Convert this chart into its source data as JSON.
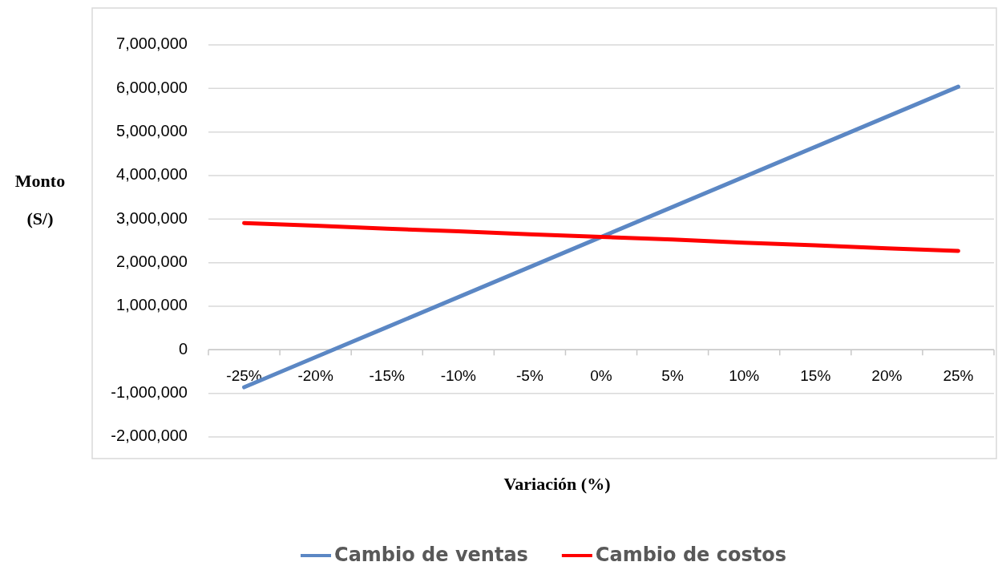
{
  "chart_data": {
    "type": "line",
    "xlabel": "Variación (%)",
    "ylabel": "Monto (S/)",
    "categories": [
      "-25%",
      "-20%",
      "-15%",
      "-10%",
      "-5%",
      "0%",
      "5%",
      "10%",
      "15%",
      "20%",
      "25%"
    ],
    "series": [
      {
        "name": "Cambio de ventas",
        "color": "#5b87c4",
        "values": [
          -860000,
          -170000,
          520000,
          1210000,
          1900000,
          2590000,
          3280000,
          3970000,
          4660000,
          5350000,
          6040000
        ]
      },
      {
        "name": "Cambio de costos",
        "color": "#ff0000",
        "values": [
          2910000,
          2850000,
          2780000,
          2720000,
          2650000,
          2590000,
          2530000,
          2460000,
          2400000,
          2330000,
          2270000
        ]
      }
    ],
    "ylim": [
      -2000000,
      7000000
    ],
    "yticks": [
      {
        "value": -2000000,
        "label": "-2,000,000"
      },
      {
        "value": -1000000,
        "label": "-1,000,000"
      },
      {
        "value": 0,
        "label": "0"
      },
      {
        "value": 1000000,
        "label": "1,000,000"
      },
      {
        "value": 2000000,
        "label": "2,000,000"
      },
      {
        "value": 3000000,
        "label": "3,000,000"
      },
      {
        "value": 4000000,
        "label": "4,000,000"
      },
      {
        "value": 5000000,
        "label": "5,000,000"
      },
      {
        "value": 6000000,
        "label": "6,000,000"
      },
      {
        "value": 7000000,
        "label": "7,000,000"
      }
    ],
    "grid": "y",
    "legend": "bottom"
  }
}
